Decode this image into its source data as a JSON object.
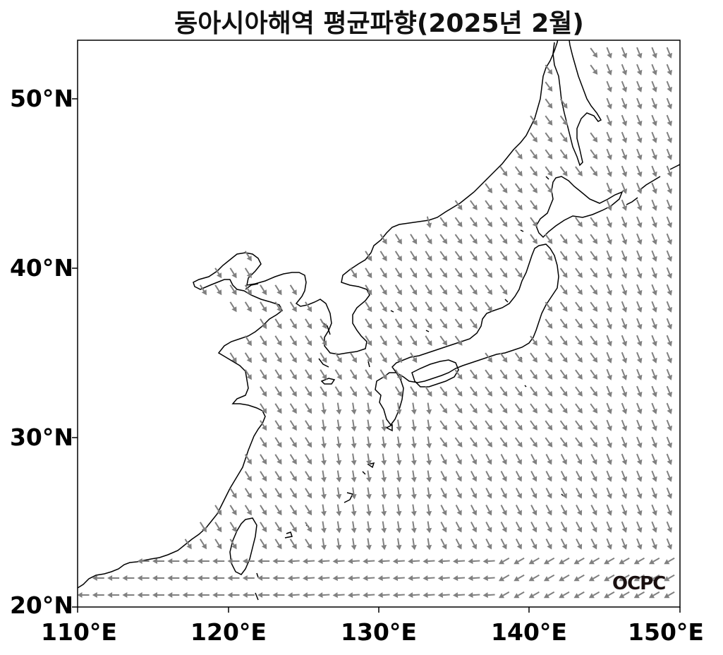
{
  "title": "동아시아해역 평균파향(2025년 2월)",
  "logo_text": "OCPC",
  "colors": {
    "arrow": "#808080",
    "coast": "#000000",
    "frame": "#000000",
    "background": "#ffffff"
  },
  "axes": {
    "lon_range": [
      110,
      150
    ],
    "lat_range": [
      20,
      53.5
    ],
    "x_ticks": [
      {
        "value": 110,
        "label": "110°E"
      },
      {
        "value": 120,
        "label": "120°E"
      },
      {
        "value": 130,
        "label": "130°E"
      },
      {
        "value": 140,
        "label": "140°E"
      },
      {
        "value": 150,
        "label": "150°E"
      }
    ],
    "y_ticks": [
      {
        "value": 20,
        "label": "20°N"
      },
      {
        "value": 30,
        "label": "30°N"
      },
      {
        "value": 40,
        "label": "40°N"
      },
      {
        "value": 50,
        "label": "50°N"
      }
    ]
  }
}
